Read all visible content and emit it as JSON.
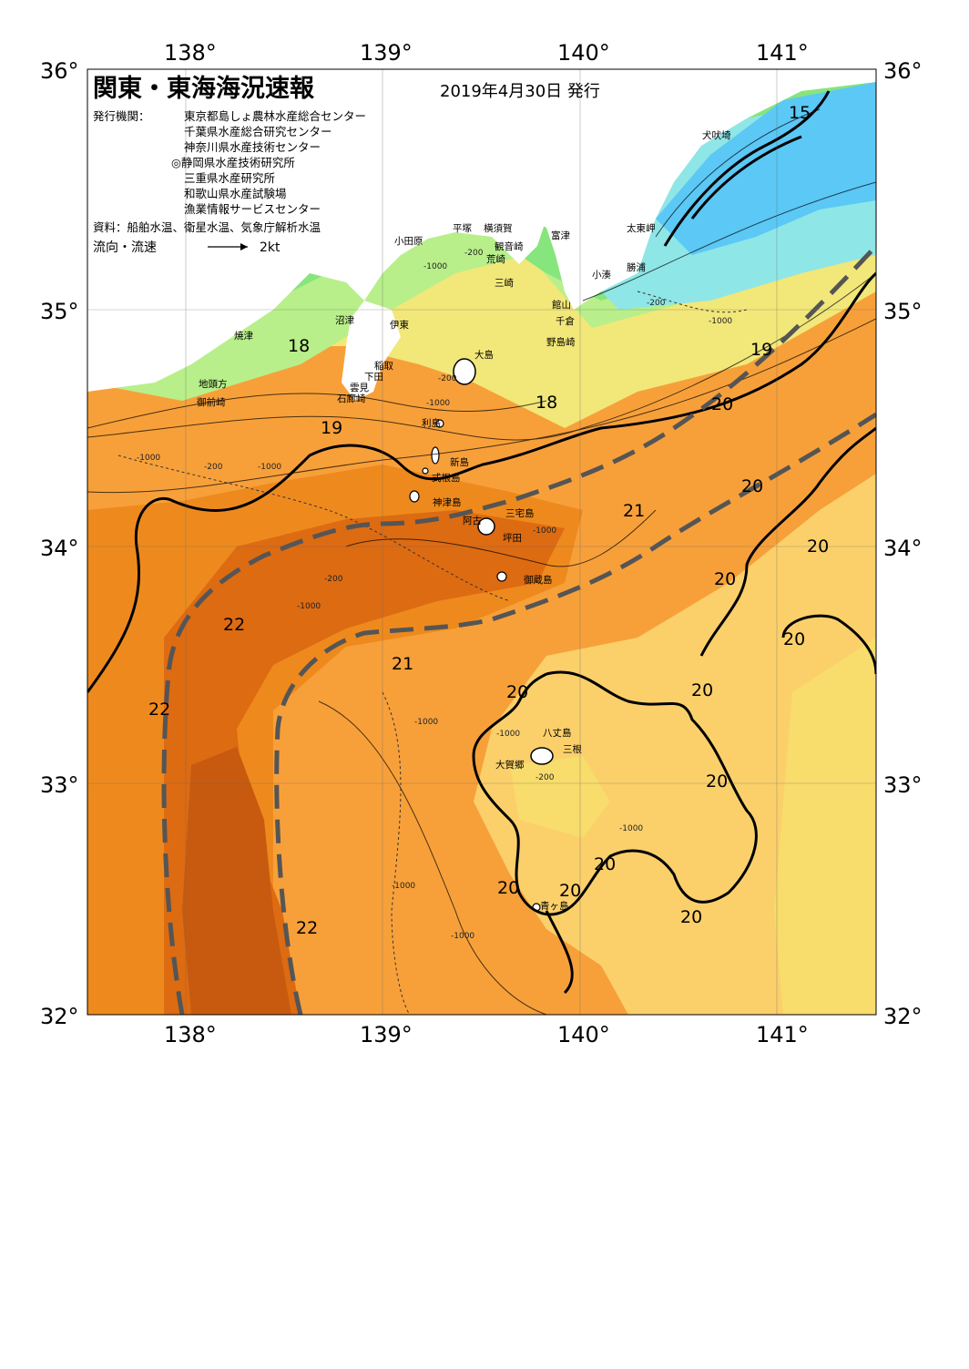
{
  "title": "関東・東海海況速報",
  "issue_date": "2019年4月30日 発行",
  "publisher_label": "発行機関：",
  "publishers": [
    "東京都島しょ農林水産総合センター",
    "千葉県水産総合研究センター",
    "神奈川県水産技術センター",
    "◎静岡県水産技術研究所",
    "三重県水産研究所",
    "和歌山県水産試験場",
    "漁業情報サービスセンター"
  ],
  "sources": "資料：船舶水温、衛星水温、気象庁解析水温",
  "flow_legend": {
    "label": "流向・流速",
    "scale": "2kt"
  },
  "axes": {
    "lon_labels": [
      "138°",
      "139°",
      "140°",
      "141°"
    ],
    "lat_labels": [
      "36°",
      "35°",
      "34°",
      "33°",
      "32°"
    ]
  },
  "places": {
    "odawara": "小田原",
    "hiratsuka": "平塚",
    "yokosuka": "横須賀",
    "kannonzaki": "観音崎",
    "futtsu": "富津",
    "arasaki": "荒崎",
    "miura": "三崎",
    "tateyama": "館山",
    "chikura": "千倉",
    "nojimazaki": "野島崎",
    "kominato": "小湊",
    "katsuura": "勝浦",
    "taitomisaki": "太東岬",
    "inubosaki": "犬吠埼",
    "yaizu": "焼津",
    "numazu": "沼津",
    "ito": "伊東",
    "inatori": "稲取",
    "shimoda": "下田",
    "kumomi": "雲見",
    "irozaki": "石廊崎",
    "jitogata": "地頭方",
    "omaezaki": "御前崎",
    "oshima": "大島",
    "toshima": "利島",
    "niijima": "新島",
    "shikinejima": "式根島",
    "kozushima": "神津島",
    "miyakejima": "三宅島",
    "ako": "阿古",
    "tsubota": "坪田",
    "mikurajima": "御蔵島",
    "hachijojima": "八丈島",
    "sanne": "三根",
    "okago": "大賀郷",
    "aogashima": "青ヶ島"
  },
  "isotherm_labels": {
    "t15": "15",
    "t18a": "18",
    "t18b": "18",
    "t19a": "19",
    "t19b": "19",
    "t20a": "20",
    "t20b": "20",
    "t20c": "20",
    "t20d": "20",
    "t20e": "20",
    "t20f": "20",
    "t20g": "20",
    "t20h": "20",
    "t20i": "20",
    "t20j": "20",
    "t20k": "20",
    "t20l": "20",
    "t21a": "21",
    "t21b": "21",
    "t22a": "22",
    "t22b": "22",
    "t22c": "22"
  },
  "depth_labels": {
    "d200": "-200",
    "d1000": "-1000"
  },
  "colors": {
    "cold": "#5bc8f5",
    "cyan": "#8fe6e6",
    "green": "#86e57c",
    "lightgreen": "#b8ef8a",
    "yellow": "#f2e779",
    "lightorange": "#fbd06b",
    "orange": "#f7a03a",
    "deeporange": "#ee8a1d",
    "darkorange": "#dd6b12",
    "kuroshio": "#c85a10",
    "land": "#ffffff",
    "axis_line": "#5a5a5a"
  }
}
